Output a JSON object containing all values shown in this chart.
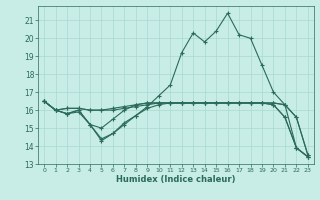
{
  "xlabel": "Humidex (Indice chaleur)",
  "bg_color": "#c8ece6",
  "line_color": "#2a6b5a",
  "grid_color": "#a8d8d0",
  "xlim": [
    -0.5,
    23.5
  ],
  "ylim": [
    13,
    21.8
  ],
  "yticks": [
    13,
    14,
    15,
    16,
    17,
    18,
    19,
    20,
    21
  ],
  "xticks": [
    0,
    1,
    2,
    3,
    4,
    5,
    6,
    7,
    8,
    9,
    10,
    11,
    12,
    13,
    14,
    15,
    16,
    17,
    18,
    19,
    20,
    21,
    22,
    23
  ],
  "series": [
    [
      16.5,
      16.0,
      16.1,
      16.1,
      16.0,
      16.0,
      16.0,
      16.1,
      16.2,
      16.3,
      16.4,
      16.4,
      16.4,
      16.4,
      16.4,
      16.4,
      16.4,
      16.4,
      16.4,
      16.4,
      16.4,
      16.3,
      15.6,
      13.5
    ],
    [
      16.5,
      16.0,
      15.8,
      16.0,
      15.2,
      14.3,
      14.7,
      15.2,
      15.7,
      16.1,
      16.3,
      16.4,
      16.4,
      16.4,
      16.4,
      16.4,
      16.4,
      16.4,
      16.4,
      16.4,
      16.3,
      15.6,
      13.9,
      13.4
    ],
    [
      16.5,
      16.0,
      15.8,
      16.0,
      15.2,
      15.0,
      15.5,
      16.0,
      16.3,
      16.4,
      16.4,
      16.4,
      16.4,
      16.4,
      16.4,
      16.4,
      16.4,
      16.4,
      16.4,
      16.4,
      16.3,
      15.6,
      13.9,
      13.4
    ],
    [
      16.5,
      16.0,
      15.8,
      15.9,
      15.2,
      14.4,
      14.7,
      15.3,
      15.7,
      16.2,
      16.8,
      17.4,
      19.2,
      20.3,
      19.8,
      20.4,
      21.4,
      20.2,
      20.0,
      18.5,
      17.0,
      16.3,
      13.9,
      13.4
    ],
    [
      16.5,
      16.0,
      16.1,
      16.1,
      16.0,
      16.0,
      16.1,
      16.2,
      16.3,
      16.4,
      16.4,
      16.4,
      16.4,
      16.4,
      16.4,
      16.4,
      16.4,
      16.4,
      16.4,
      16.4,
      16.4,
      16.3,
      15.6,
      13.5
    ]
  ]
}
